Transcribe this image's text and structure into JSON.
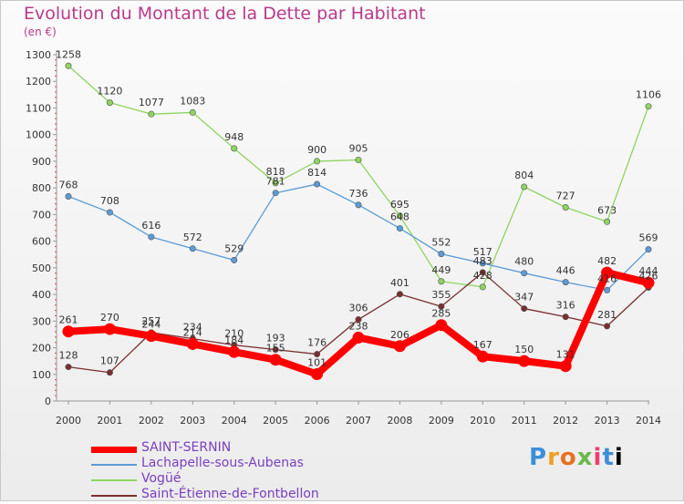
{
  "title": "Evolution du Montant de la Dette par Habitant",
  "subtitle": "(en €)",
  "logo_text": "Proxiti",
  "chart_data": {
    "type": "line",
    "x": [
      "2000",
      "2001",
      "2002",
      "2003",
      "2004",
      "2005",
      "2006",
      "2007",
      "2008",
      "2009",
      "2010",
      "2011",
      "2012",
      "2013",
      "2014"
    ],
    "ylim": [
      0,
      1300
    ],
    "yticks": [
      0,
      100,
      200,
      300,
      400,
      500,
      600,
      700,
      800,
      900,
      1000,
      1100,
      1200,
      1300
    ],
    "grid": false,
    "legend_position": "bottom-left",
    "series": [
      {
        "name": "SAINT-SERNIN",
        "color": "#ff0000",
        "emphasis": true,
        "values": [
          261,
          270,
          244,
          214,
          184,
          155,
          101,
          238,
          206,
          285,
          167,
          150,
          131,
          482,
          444
        ]
      },
      {
        "name": "Lachapelle-sous-Aubenas",
        "color": "#5b9bd5",
        "values": [
          768,
          708,
          616,
          572,
          529,
          781,
          814,
          736,
          648,
          552,
          517,
          480,
          446,
          416,
          569
        ]
      },
      {
        "name": "Vogüé",
        "color": "#8fd45f",
        "values": [
          1258,
          1120,
          1077,
          1083,
          948,
          818,
          900,
          905,
          695,
          449,
          428,
          804,
          727,
          673,
          1106
        ]
      },
      {
        "name": "Saint-Étienne-de-Fontbellon",
        "color": "#7a2e2e",
        "values": [
          128,
          107,
          257,
          234,
          210,
          193,
          176,
          306,
          401,
          355,
          483,
          347,
          316,
          281,
          426
        ]
      }
    ]
  }
}
